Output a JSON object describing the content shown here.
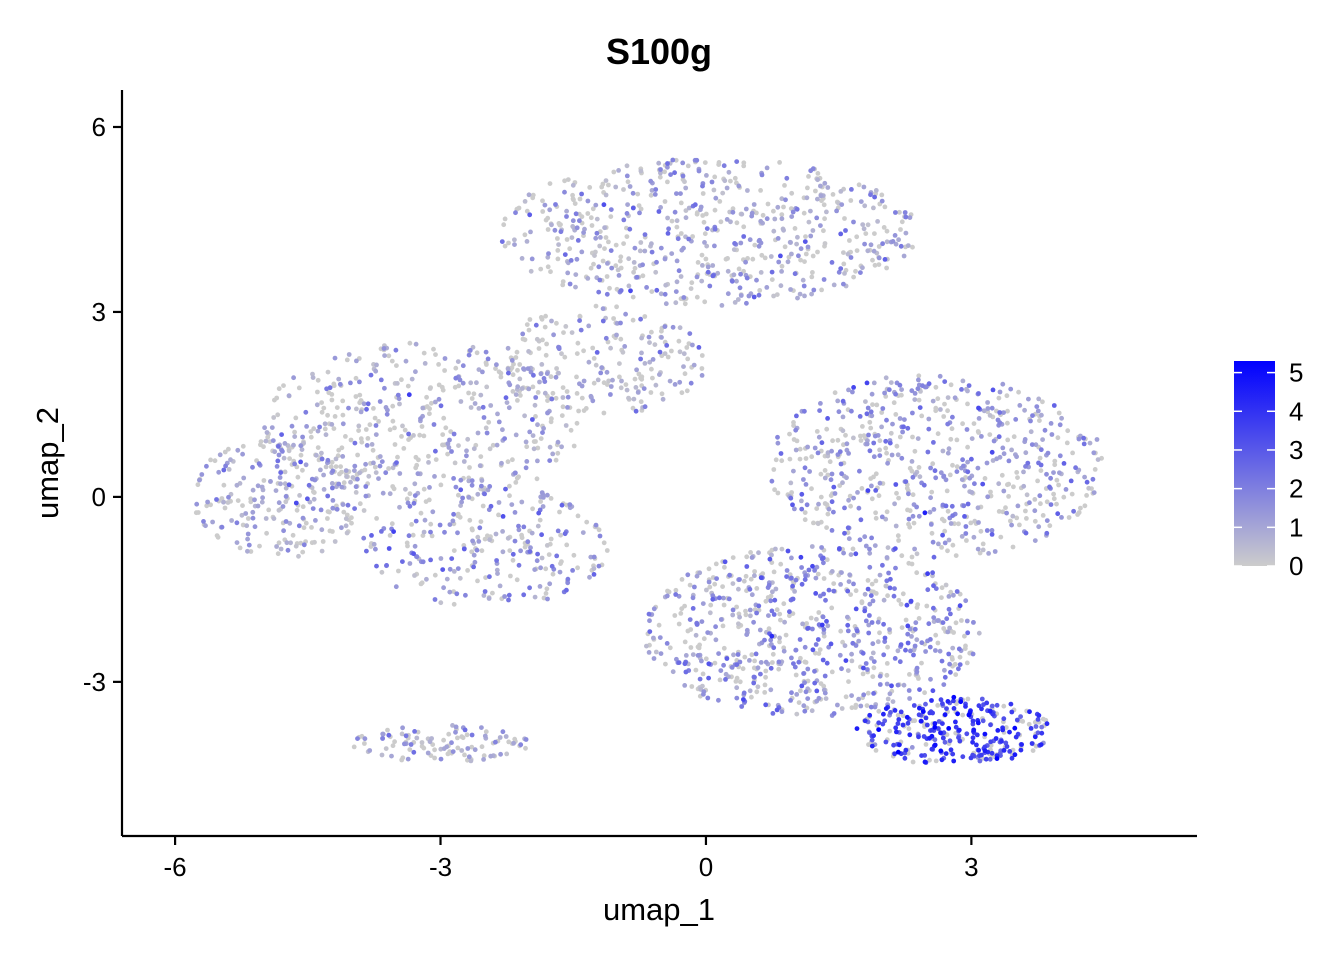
{
  "chart_data": {
    "type": "scatter",
    "title": "S100g",
    "xlabel": "umap_1",
    "ylabel": "umap_2",
    "xlim": [
      -6.6,
      5.55
    ],
    "ylim": [
      -5.5,
      6.6
    ],
    "x_ticks": [
      -6,
      -3,
      0,
      3
    ],
    "x_tick_labels": [
      "-6",
      "-3",
      "0",
      "3"
    ],
    "y_ticks": [
      -3,
      0,
      3,
      6
    ],
    "y_tick_labels": [
      "-3",
      "0",
      "3",
      "6"
    ],
    "grid": false,
    "legend": {
      "placement": "right",
      "type": "colorbar",
      "min": 0,
      "max": 5.3,
      "ticks": [
        0,
        1,
        2,
        3,
        4,
        5
      ],
      "tick_labels": [
        "0",
        "1",
        "2",
        "3",
        "4",
        "5"
      ]
    },
    "colors": {
      "low": "#cccccc",
      "high": "#0000ff"
    },
    "series": [
      {
        "points_approximate": true,
        "regions": [
          {
            "cx": 0.0,
            "cy": 4.3,
            "rx": 2.4,
            "ry": 1.2,
            "n": 620,
            "expr": 1.0
          },
          {
            "cx": -3.2,
            "cy": 1.2,
            "rx": 1.8,
            "ry": 1.3,
            "n": 420,
            "expr": 0.9
          },
          {
            "cx": -4.8,
            "cy": 0.0,
            "rx": 1.0,
            "ry": 1.0,
            "n": 260,
            "expr": 1.0
          },
          {
            "cx": -2.5,
            "cy": -0.8,
            "rx": 1.4,
            "ry": 1.0,
            "n": 260,
            "expr": 1.5
          },
          {
            "cx": 2.6,
            "cy": 0.5,
            "rx": 1.9,
            "ry": 1.5,
            "n": 620,
            "expr": 1.4
          },
          {
            "cx": 1.2,
            "cy": -2.2,
            "rx": 1.9,
            "ry": 1.4,
            "n": 700,
            "expr": 1.6
          },
          {
            "cx": 2.8,
            "cy": -3.8,
            "rx": 1.1,
            "ry": 0.55,
            "n": 320,
            "expr": 3.6
          },
          {
            "cx": -3.0,
            "cy": -4.0,
            "rx": 1.0,
            "ry": 0.3,
            "n": 110,
            "expr": 0.9
          },
          {
            "cx": -1.2,
            "cy": 2.2,
            "rx": 1.2,
            "ry": 0.9,
            "n": 220,
            "expr": 0.7
          }
        ]
      }
    ]
  }
}
